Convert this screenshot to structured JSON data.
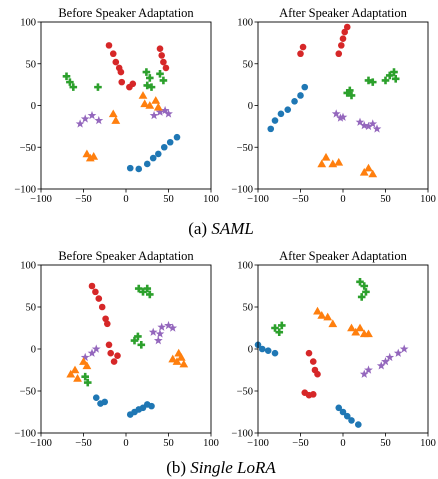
{
  "figure": {
    "captions": [
      {
        "prefix": "(a) ",
        "name": "SAML"
      },
      {
        "prefix": "(b) ",
        "name": "Single LoRA"
      }
    ]
  },
  "colors": {
    "blue": "#1f77b4",
    "orange": "#ff7f0e",
    "green": "#2ca02c",
    "red": "#d62728",
    "purple": "#9467bd"
  },
  "chart_data": [
    {
      "type": "scatter",
      "title": "Before Speaker Adaptation",
      "xlim": [
        -100,
        100
      ],
      "ylim": [
        -100,
        100
      ],
      "xticks": [
        -100,
        -50,
        0,
        50,
        100
      ],
      "yticks": [
        -100,
        -50,
        0,
        50,
        100
      ],
      "xtick_labels": [
        "−100",
        "−50",
        "0",
        "50",
        "100"
      ],
      "ytick_labels": [
        "−100",
        "−50",
        "0",
        "50",
        "100"
      ],
      "grid": false,
      "clusters": [
        {
          "color": "red",
          "marker": "circle",
          "points": [
            [
              -20,
              72
            ],
            [
              -15,
              62
            ],
            [
              -12,
              52
            ],
            [
              -8,
              45
            ],
            [
              -6,
              40
            ],
            [
              40,
              68
            ],
            [
              42,
              60
            ],
            [
              44,
              52
            ],
            [
              47,
              45
            ]
          ]
        },
        {
          "color": "green",
          "marker": "plus",
          "points": [
            [
              -70,
              35
            ],
            [
              -66,
              28
            ],
            [
              -62,
              22
            ],
            [
              -33,
              22
            ],
            [
              24,
              40
            ],
            [
              28,
              33
            ],
            [
              40,
              38
            ],
            [
              44,
              30
            ],
            [
              25,
              24
            ],
            [
              30,
              22
            ]
          ]
        },
        {
          "color": "red",
          "marker": "circle",
          "points": [
            [
              -5,
              28
            ],
            [
              4,
              22
            ],
            [
              8,
              26
            ]
          ]
        },
        {
          "color": "purple",
          "marker": "star",
          "points": [
            [
              -54,
              -22
            ],
            [
              -48,
              -16
            ],
            [
              -40,
              -12
            ],
            [
              -32,
              -18
            ],
            [
              33,
              -12
            ],
            [
              40,
              -8
            ],
            [
              46,
              -6
            ],
            [
              50,
              -10
            ]
          ]
        },
        {
          "color": "orange",
          "marker": "triangle",
          "points": [
            [
              -15,
              -10
            ],
            [
              -12,
              -18
            ],
            [
              20,
              12
            ],
            [
              22,
              2
            ],
            [
              28,
              0
            ],
            [
              35,
              6
            ],
            [
              38,
              -2
            ]
          ]
        },
        {
          "color": "orange",
          "marker": "triangle",
          "points": [
            [
              -46,
              -58
            ],
            [
              -42,
              -63
            ],
            [
              -38,
              -61
            ]
          ]
        },
        {
          "color": "blue",
          "marker": "circle",
          "points": [
            [
              5,
              -75
            ],
            [
              15,
              -76
            ],
            [
              25,
              -70
            ],
            [
              32,
              -63
            ],
            [
              38,
              -58
            ],
            [
              45,
              -50
            ],
            [
              52,
              -44
            ],
            [
              60,
              -38
            ]
          ]
        }
      ]
    },
    {
      "type": "scatter",
      "title": "After Speaker Adaptation",
      "xlim": [
        -100,
        100
      ],
      "ylim": [
        -100,
        100
      ],
      "xticks": [
        -100,
        -50,
        0,
        50,
        100
      ],
      "yticks": [
        -100,
        -50,
        0,
        50,
        100
      ],
      "xtick_labels": [
        "−100",
        "−50",
        "0",
        "50",
        "100"
      ],
      "ytick_labels": [
        "−100",
        "−50",
        "0",
        "50",
        "100"
      ],
      "grid": false,
      "clusters": [
        {
          "color": "red",
          "marker": "circle",
          "points": [
            [
              -50,
              62
            ],
            [
              -47,
              70
            ],
            [
              -5,
              62
            ],
            [
              -2,
              72
            ],
            [
              0,
              80
            ],
            [
              2,
              88
            ],
            [
              5,
              94
            ]
          ]
        },
        {
          "color": "green",
          "marker": "plus",
          "points": [
            [
              5,
              15
            ],
            [
              8,
              18
            ],
            [
              10,
              12
            ],
            [
              30,
              30
            ],
            [
              35,
              28
            ],
            [
              50,
              30
            ],
            [
              55,
              36
            ],
            [
              60,
              40
            ],
            [
              62,
              32
            ]
          ]
        },
        {
          "color": "blue",
          "marker": "circle",
          "points": [
            [
              -85,
              -28
            ],
            [
              -80,
              -18
            ],
            [
              -73,
              -10
            ],
            [
              -65,
              -5
            ],
            [
              -57,
              5
            ],
            [
              -50,
              12
            ],
            [
              -45,
              22
            ]
          ]
        },
        {
          "color": "purple",
          "marker": "star",
          "points": [
            [
              -8,
              -10
            ],
            [
              -3,
              -15
            ],
            [
              0,
              -14
            ],
            [
              20,
              -20
            ],
            [
              25,
              -24
            ],
            [
              30,
              -25
            ],
            [
              35,
              -22
            ],
            [
              40,
              -28
            ]
          ]
        },
        {
          "color": "orange",
          "marker": "triangle",
          "points": [
            [
              -25,
              -70
            ],
            [
              -20,
              -62
            ],
            [
              -12,
              -70
            ],
            [
              -5,
              -68
            ],
            [
              25,
              -80
            ],
            [
              30,
              -75
            ],
            [
              35,
              -82
            ]
          ]
        }
      ]
    },
    {
      "type": "scatter",
      "title": "Before Speaker Adaptation",
      "xlim": [
        -100,
        100
      ],
      "ylim": [
        -100,
        100
      ],
      "xticks": [
        -100,
        -50,
        0,
        50,
        100
      ],
      "yticks": [
        -100,
        -50,
        0,
        50,
        100
      ],
      "xtick_labels": [
        "−100",
        "−50",
        "0",
        "50",
        "100"
      ],
      "ytick_labels": [
        "−100",
        "−50",
        "0",
        "50",
        "100"
      ],
      "grid": false,
      "clusters": [
        {
          "color": "red",
          "marker": "circle",
          "points": [
            [
              -40,
              75
            ],
            [
              -36,
              68
            ],
            [
              -32,
              60
            ],
            [
              -28,
              50
            ],
            [
              -24,
              36
            ],
            [
              -22,
              30
            ],
            [
              -20,
              5
            ],
            [
              -18,
              -5
            ],
            [
              -14,
              -15
            ],
            [
              -10,
              -8
            ]
          ]
        },
        {
          "color": "green",
          "marker": "plus",
          "points": [
            [
              15,
              72
            ],
            [
              20,
              68
            ],
            [
              25,
              72
            ],
            [
              28,
              65
            ],
            [
              10,
              10
            ],
            [
              14,
              15
            ],
            [
              18,
              5
            ],
            [
              -45,
              -40
            ],
            [
              -48,
              -33
            ]
          ]
        },
        {
          "color": "purple",
          "marker": "star",
          "points": [
            [
              -48,
              -10
            ],
            [
              -40,
              -5
            ],
            [
              -35,
              0
            ],
            [
              42,
              26
            ],
            [
              50,
              28
            ],
            [
              55,
              25
            ],
            [
              32,
              20
            ],
            [
              40,
              18
            ],
            [
              38,
              10
            ]
          ]
        },
        {
          "color": "orange",
          "marker": "triangle",
          "points": [
            [
              -60,
              -25
            ],
            [
              -65,
              -30
            ],
            [
              -57,
              -35
            ],
            [
              -50,
              -15
            ],
            [
              -46,
              -20
            ],
            [
              55,
              -12
            ],
            [
              60,
              -15
            ],
            [
              65,
              -10
            ],
            [
              68,
              -18
            ],
            [
              62,
              -5
            ]
          ]
        },
        {
          "color": "blue",
          "marker": "circle",
          "points": [
            [
              -35,
              -58
            ],
            [
              -30,
              -65
            ],
            [
              -25,
              -63
            ],
            [
              5,
              -78
            ],
            [
              10,
              -75
            ],
            [
              15,
              -72
            ],
            [
              20,
              -70
            ],
            [
              25,
              -66
            ],
            [
              30,
              -68
            ]
          ]
        }
      ]
    },
    {
      "type": "scatter",
      "title": "After Speaker Adaptation",
      "xlim": [
        -100,
        100
      ],
      "ylim": [
        -100,
        100
      ],
      "xticks": [
        -100,
        -50,
        0,
        50,
        100
      ],
      "yticks": [
        -100,
        -50,
        0,
        50,
        100
      ],
      "xtick_labels": [
        "−100",
        "−50",
        "0",
        "50",
        "100"
      ],
      "ytick_labels": [
        "−100",
        "−50",
        "0",
        "50",
        "100"
      ],
      "grid": false,
      "clusters": [
        {
          "color": "green",
          "marker": "plus",
          "points": [
            [
              20,
              80
            ],
            [
              25,
              75
            ],
            [
              27,
              68
            ],
            [
              22,
              62
            ],
            [
              -80,
              25
            ],
            [
              -75,
              20
            ],
            [
              -72,
              28
            ]
          ]
        },
        {
          "color": "orange",
          "marker": "triangle",
          "points": [
            [
              -30,
              45
            ],
            [
              -25,
              40
            ],
            [
              -18,
              38
            ],
            [
              -12,
              30
            ],
            [
              10,
              25
            ],
            [
              15,
              20
            ],
            [
              20,
              25
            ],
            [
              25,
              18
            ],
            [
              30,
              18
            ]
          ]
        },
        {
          "color": "blue",
          "marker": "circle",
          "points": [
            [
              -100,
              5
            ],
            [
              -95,
              0
            ],
            [
              -88,
              -2
            ],
            [
              -80,
              -5
            ],
            [
              -5,
              -70
            ],
            [
              0,
              -75
            ],
            [
              5,
              -80
            ],
            [
              10,
              -85
            ],
            [
              18,
              -90
            ]
          ]
        },
        {
          "color": "red",
          "marker": "circle",
          "points": [
            [
              -40,
              -5
            ],
            [
              -35,
              -15
            ],
            [
              -33,
              -25
            ],
            [
              -30,
              -30
            ],
            [
              -45,
              -52
            ],
            [
              -40,
              -55
            ],
            [
              -35,
              -54
            ]
          ]
        },
        {
          "color": "purple",
          "marker": "star",
          "points": [
            [
              25,
              -30
            ],
            [
              30,
              -25
            ],
            [
              45,
              -20
            ],
            [
              50,
              -15
            ],
            [
              55,
              -10
            ],
            [
              65,
              -5
            ],
            [
              72,
              0
            ]
          ]
        }
      ]
    }
  ]
}
